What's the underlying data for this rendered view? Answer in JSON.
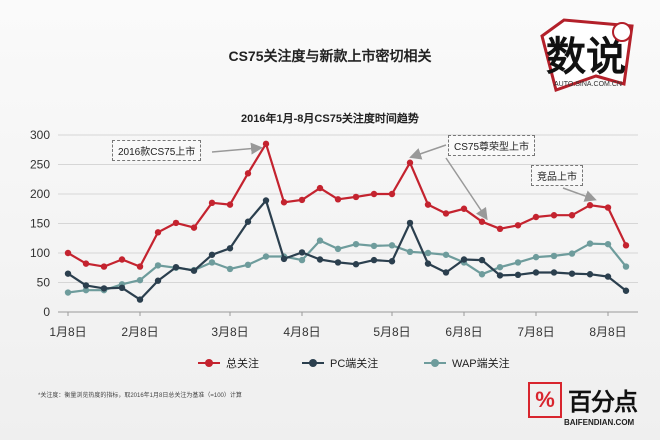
{
  "headline": "CS75关注度与新款上市密切相关",
  "logos": {
    "shuo_text": "数说",
    "shuo_url": "AUTO.SINA.COM.CN",
    "bfd_mark": "%",
    "bfd_name": "百分点",
    "bfd_url": "BAIFENDIAN.COM"
  },
  "footnote": "*关注度：衡量浏览热度的指标，取2016年1月8日总关注为基准（=100）计算",
  "colors": {
    "total": "#c4232f",
    "pc": "#2b3f4e",
    "wap": "#6e9c9c"
  },
  "chart_data": {
    "type": "line",
    "title": "2016年1月-8月CS75关注度时间趋势",
    "xlabel": "",
    "ylabel": "",
    "ylim": [
      0,
      300
    ],
    "yticks": [
      0,
      50,
      100,
      150,
      200,
      250,
      300
    ],
    "x_tick_labels": [
      "1月8日",
      "2月8日",
      "3月8日",
      "4月8日",
      "5月8日",
      "6月8日",
      "7月8日",
      "8月8日"
    ],
    "legend_position": "bottom",
    "grid": "horizontal",
    "series": [
      {
        "name": "总关注",
        "color_key": "total",
        "values": [
          100,
          82,
          77,
          89,
          77,
          135,
          151,
          143,
          185,
          182,
          235,
          285,
          186,
          190,
          210,
          191,
          195,
          200,
          200,
          253,
          182,
          167,
          175,
          153,
          141,
          147,
          161,
          164,
          164,
          181,
          177,
          113
        ]
      },
      {
        "name": "PC端关注",
        "color_key": "pc",
        "values": [
          65,
          45,
          40,
          41,
          21,
          53,
          76,
          70,
          97,
          108,
          153,
          189,
          90,
          101,
          89,
          84,
          81,
          88,
          86,
          151,
          82,
          67,
          89,
          88,
          62,
          63,
          67,
          67,
          65,
          64,
          60,
          36
        ]
      },
      {
        "name": "WAP端关注",
        "color_key": "wap",
        "values": [
          33,
          37,
          37,
          47,
          54,
          79,
          75,
          71,
          84,
          73,
          80,
          94,
          94,
          88,
          121,
          107,
          115,
          112,
          113,
          102,
          100,
          97,
          84,
          64,
          76,
          84,
          93,
          95,
          99,
          116,
          115,
          77
        ]
      }
    ],
    "annotations": [
      {
        "text": "2016款CS75上市",
        "point_index": 11
      },
      {
        "text": "CS75尊荣型上市",
        "point_index": 19
      },
      {
        "text": "竞品上市",
        "point_index": 29
      }
    ]
  }
}
